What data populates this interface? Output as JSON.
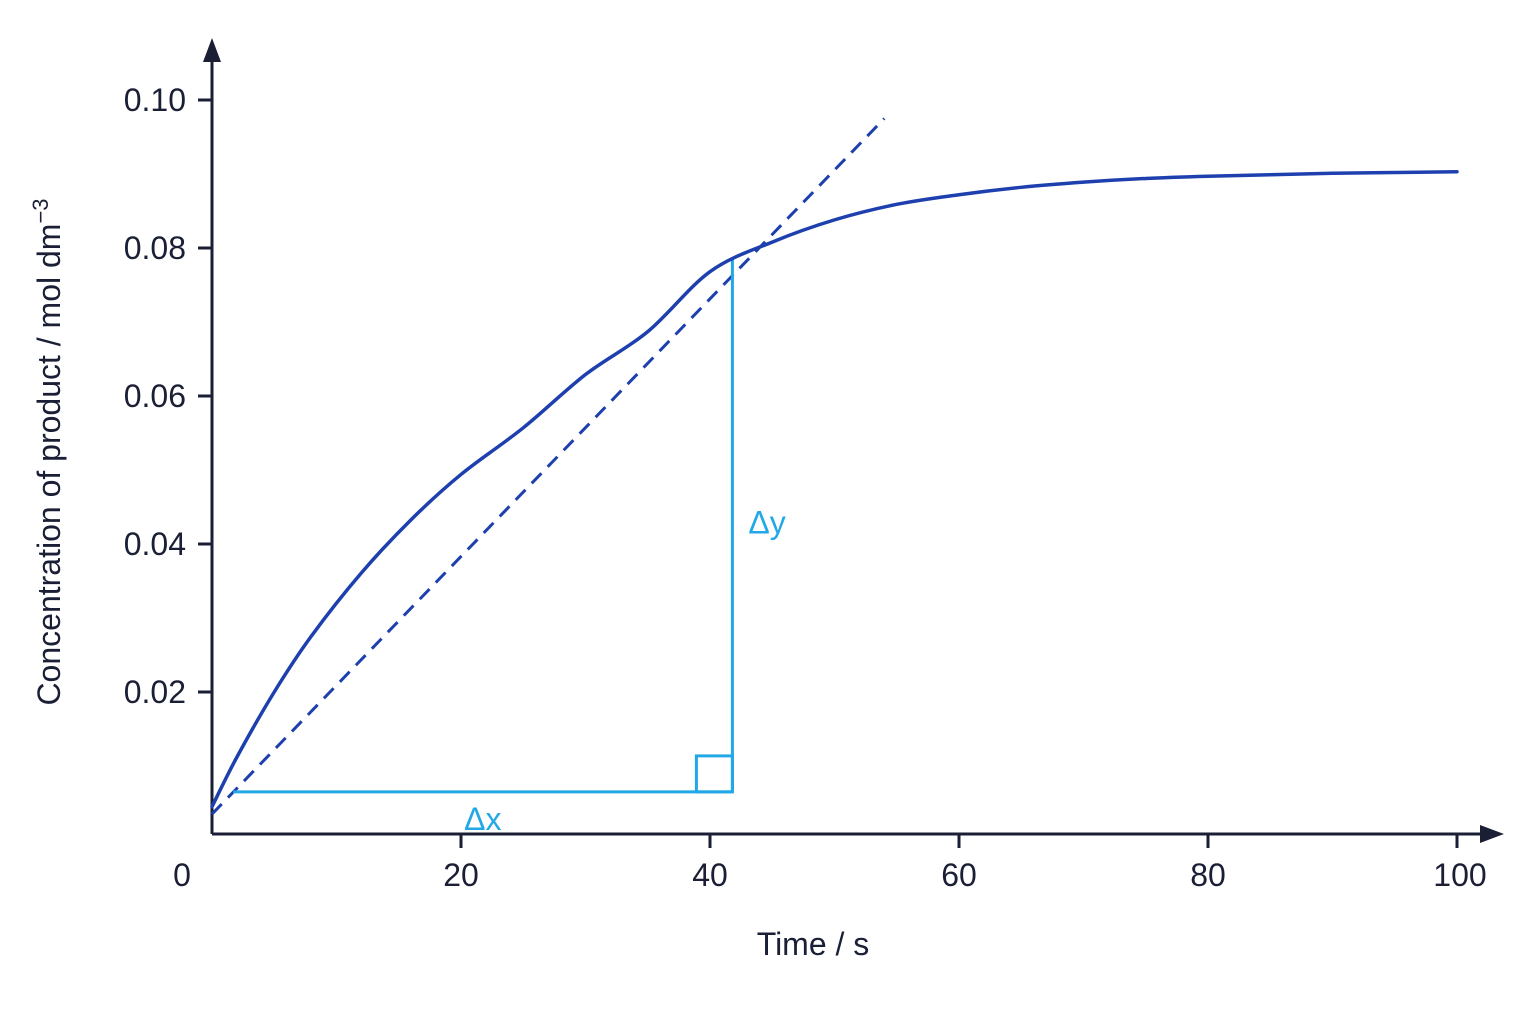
{
  "chart_data": {
    "type": "line",
    "title": "",
    "xlabel": "Time / s",
    "ylabel": {
      "text": "Concentration of product  / mol dm",
      "superscript": "−3"
    },
    "xlim": [
      0,
      100
    ],
    "ylim": [
      0,
      0.1
    ],
    "x_ticks": [
      {
        "value": 0,
        "label": "0"
      },
      {
        "value": 20,
        "label": "20"
      },
      {
        "value": 40,
        "label": "40"
      },
      {
        "value": 60,
        "label": "60"
      },
      {
        "value": 80,
        "label": "80"
      },
      {
        "value": 100,
        "label": "100"
      }
    ],
    "y_ticks": [
      {
        "value": 0.02,
        "label": "0.02"
      },
      {
        "value": 0.04,
        "label": "0.04"
      },
      {
        "value": 0.06,
        "label": "0.06"
      },
      {
        "value": 0.08,
        "label": "0.08"
      },
      {
        "value": 0.1,
        "label": "0.10"
      }
    ],
    "grid": false,
    "series": [
      {
        "x": [
          0,
          2,
          5,
          8,
          12,
          16,
          20,
          25,
          30,
          35,
          40,
          45,
          50,
          55,
          60,
          65,
          70,
          75,
          80,
          85,
          90,
          95,
          100
        ],
        "y": [
          0.0045,
          0.0112,
          0.02,
          0.0276,
          0.0361,
          0.0433,
          0.0494,
          0.0557,
          0.0629,
          0.0687,
          0.0768,
          0.0808,
          0.0838,
          0.0859,
          0.0872,
          0.0882,
          0.0889,
          0.0894,
          0.0897,
          0.0899,
          0.0901,
          0.0902,
          0.0903
        ],
        "color": "#1e40af",
        "style": "solid"
      }
    ],
    "tangent": {
      "x": [
        0,
        54
      ],
      "y": [
        0.0035,
        0.0975
      ],
      "color": "#1e40af",
      "style": "dashed"
    },
    "gradient_triangle": {
      "x_start": 1.7,
      "x_end": 41.8,
      "y_bottom": 0.0065,
      "y_top": 0.0785,
      "color": "#22a8e6",
      "dx_label": "Δx",
      "dy_label": "Δy"
    },
    "colors": {
      "axis": "#1a1f36",
      "curve": "#1e40af",
      "triangle": "#22a8e6"
    }
  }
}
